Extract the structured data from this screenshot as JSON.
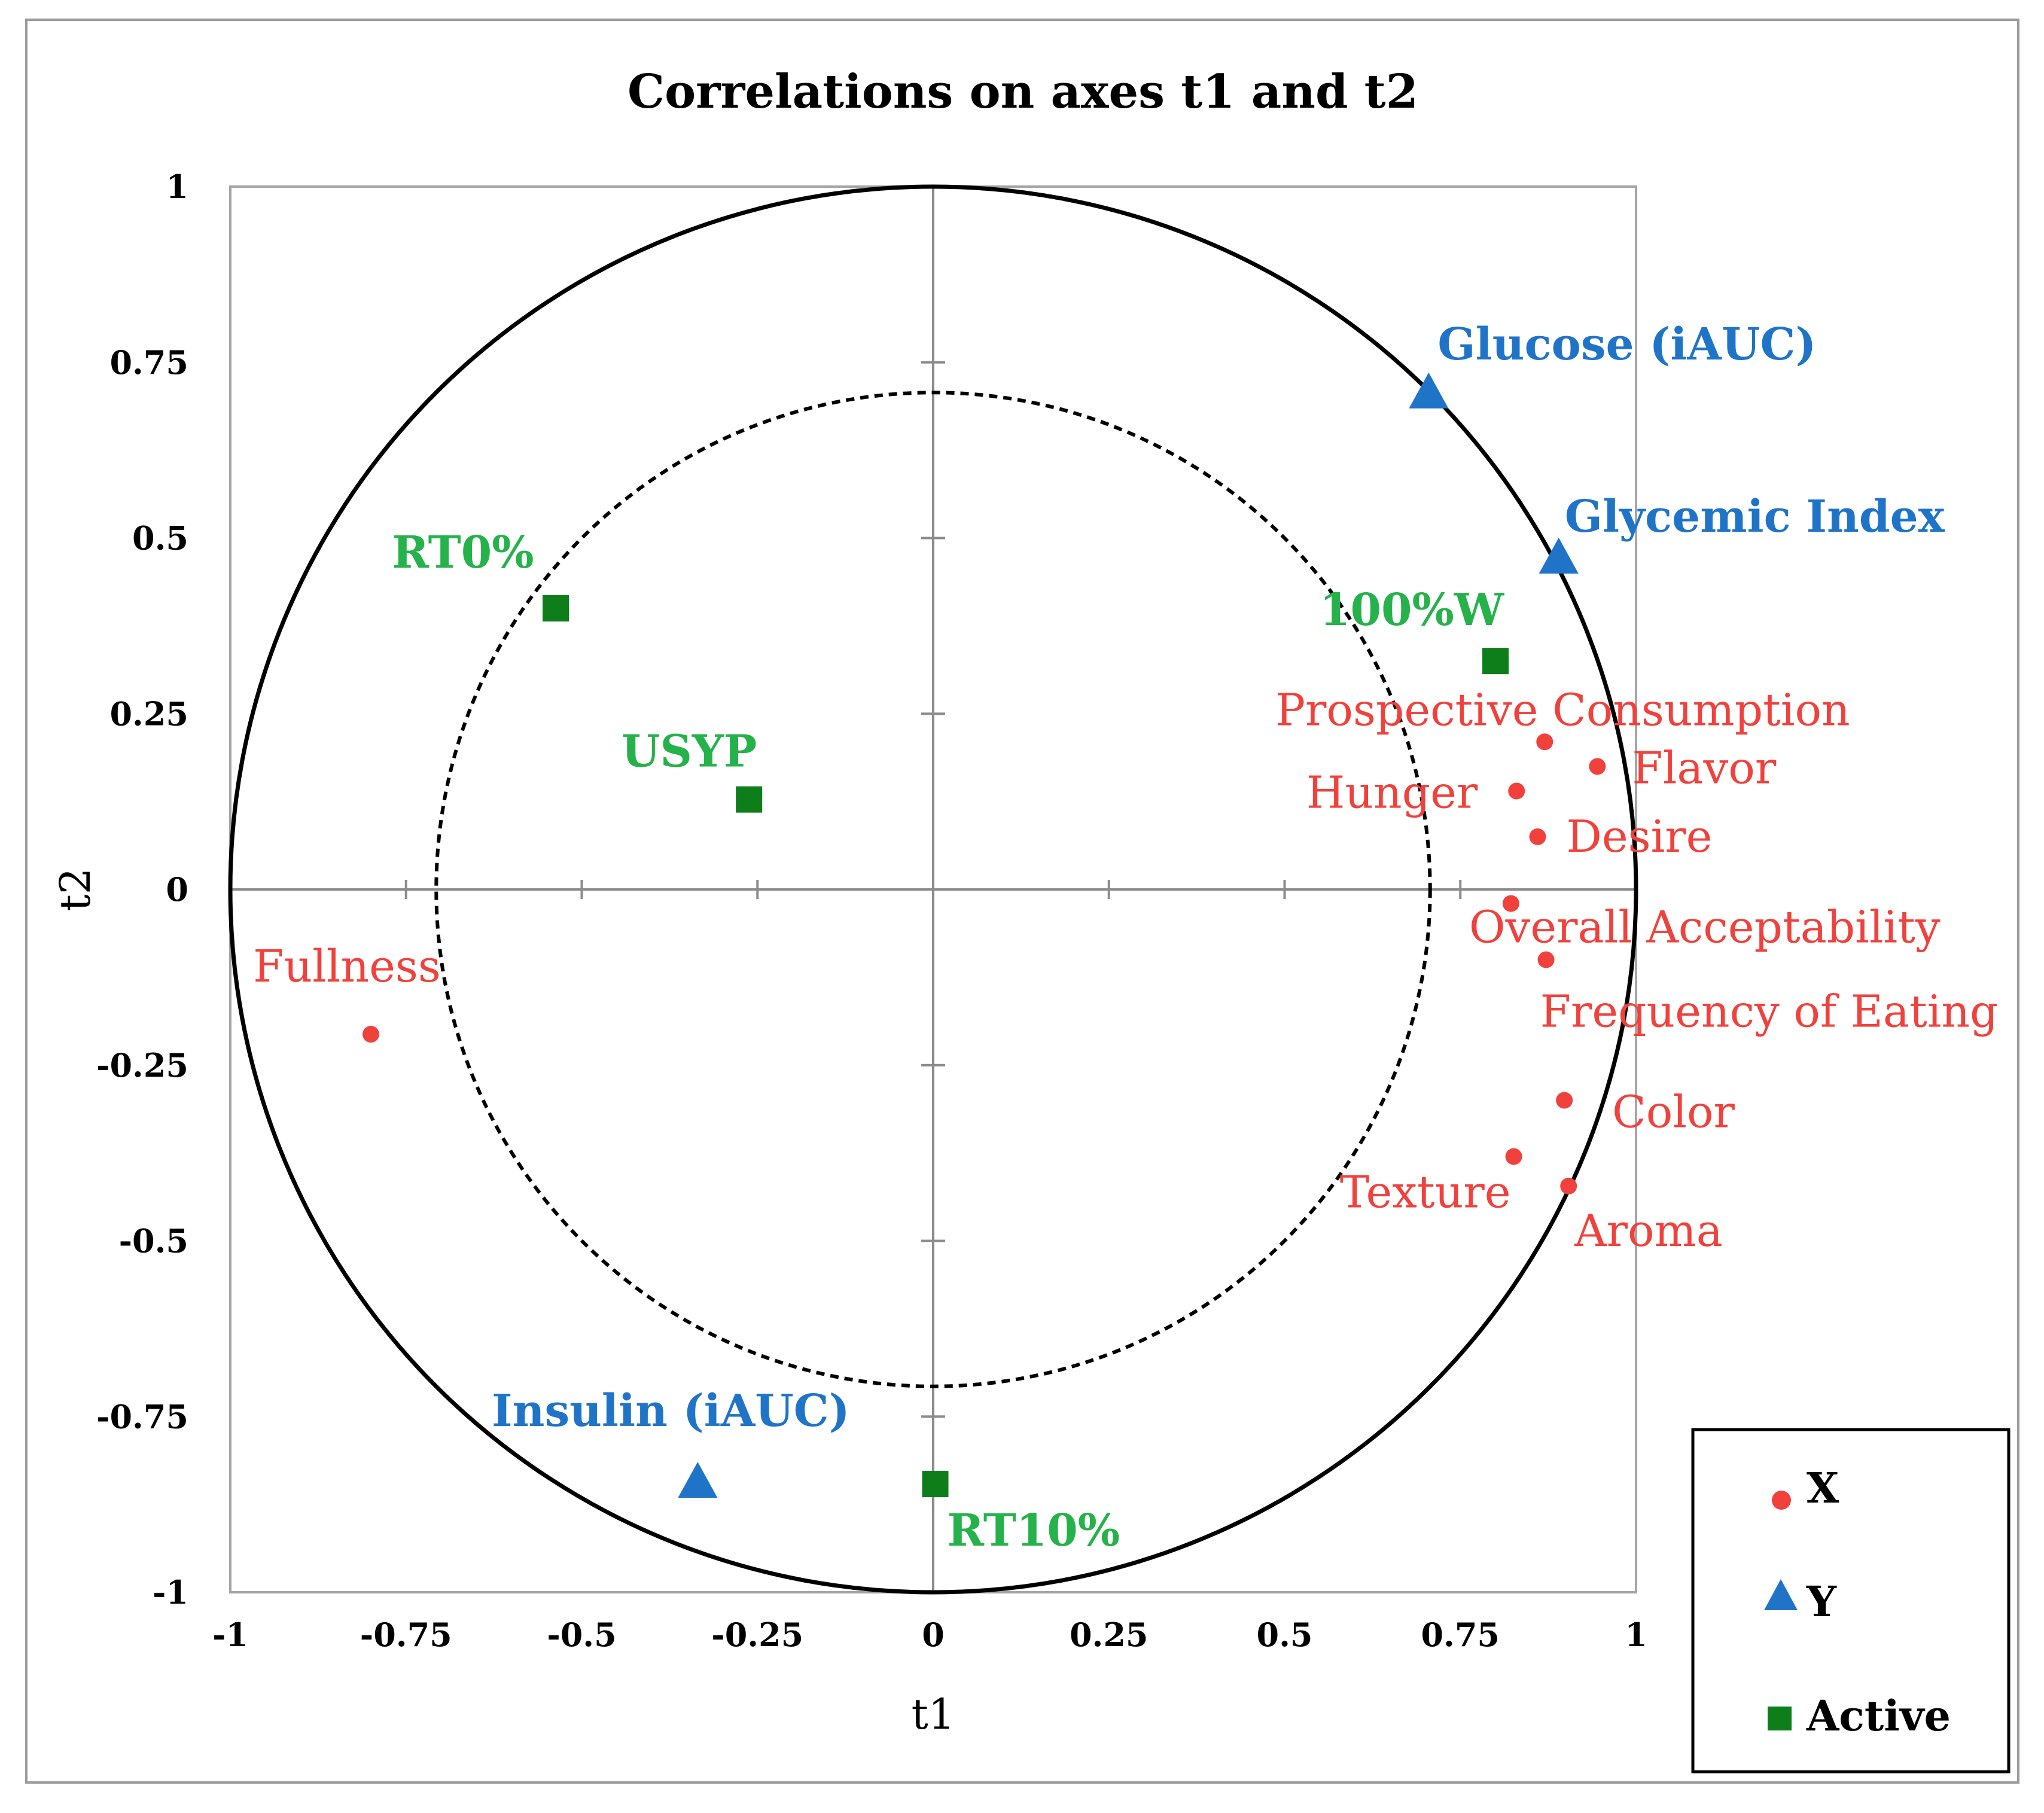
{
  "chart_data": {
    "type": "scatter",
    "title": "Correlations on axes t1 and t2",
    "xlabel": "t1",
    "ylabel": "t2",
    "xlim": [
      -1,
      1
    ],
    "ylim": [
      -1,
      1
    ],
    "x_ticks": [
      -1,
      -0.75,
      -0.5,
      -0.25,
      0,
      0.25,
      0.5,
      0.75,
      1
    ],
    "y_ticks": [
      -1,
      -0.75,
      -0.5,
      -0.25,
      0,
      0.25,
      0.5,
      0.75,
      1
    ],
    "x_tick_labels": [
      "-1",
      "-0.75",
      "-0.5",
      "-0.25",
      "0",
      "0.25",
      "0.5",
      "0.75",
      "1"
    ],
    "y_tick_labels": [
      "-1",
      "-0.75",
      "-0.5",
      "-0.25",
      "0",
      "0.25",
      "0.5",
      "0.75",
      "1"
    ],
    "circles": [
      {
        "radius": 1,
        "style": "solid"
      },
      {
        "radius": 0.707,
        "style": "dashed"
      }
    ],
    "legend_position": "bottom-right",
    "colors": {
      "X": "#f0413c",
      "Y": "#1f74c8",
      "Active": "#0e7e1b",
      "ActiveLabel": "#26b24a"
    },
    "series": [
      {
        "name": "X",
        "marker": "circle",
        "points": [
          {
            "label": "Prospective Consumption",
            "x": 0.87,
            "y": 0.21
          },
          {
            "label": "Flavor",
            "x": 0.945,
            "y": 0.175
          },
          {
            "label": "Hunger",
            "x": 0.83,
            "y": 0.14
          },
          {
            "label": "Desire",
            "x": 0.86,
            "y": 0.075
          },
          {
            "label": "Overall Acceptability",
            "x": 0.822,
            "y": -0.02
          },
          {
            "label": "Frequency of Eating",
            "x": 0.872,
            "y": -0.1
          },
          {
            "label": "Color",
            "x": 0.898,
            "y": -0.3
          },
          {
            "label": "Texture",
            "x": 0.826,
            "y": -0.38
          },
          {
            "label": "Aroma",
            "x": 0.904,
            "y": -0.422
          },
          {
            "label": "Fullness",
            "x": -0.8,
            "y": -0.206
          }
        ]
      },
      {
        "name": "Y",
        "marker": "triangle",
        "points": [
          {
            "label": "Glucose (iAUC)",
            "x": 0.705,
            "y": 0.71
          },
          {
            "label": "Glycemic Index",
            "x": 0.89,
            "y": 0.475
          },
          {
            "label": "Insulin (iAUC)",
            "x": -0.335,
            "y": -0.84
          }
        ]
      },
      {
        "name": "Active",
        "marker": "square",
        "points": [
          {
            "label": "RT0%",
            "x": -0.537,
            "y": 0.4
          },
          {
            "label": "USYP",
            "x": -0.262,
            "y": 0.128
          },
          {
            "label": "100%W",
            "x": 0.8,
            "y": 0.325
          },
          {
            "label": "RT10%",
            "x": 0.003,
            "y": -0.846
          }
        ]
      }
    ]
  }
}
